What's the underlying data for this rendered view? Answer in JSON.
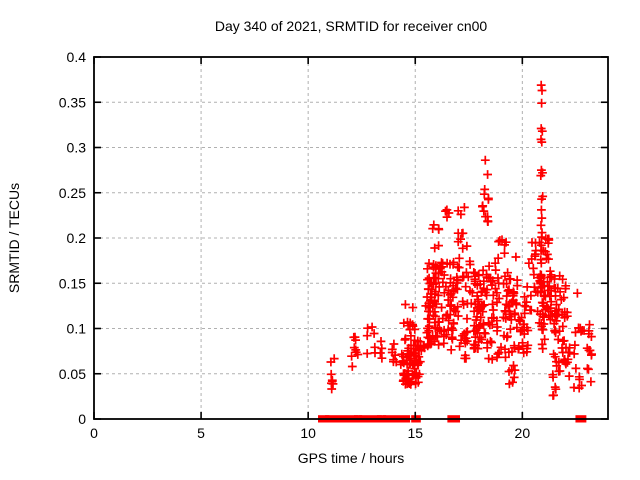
{
  "window": {
    "background": "#ffffff"
  },
  "chart_data": {
    "type": "scatter",
    "title": "Day 340 of 2021, SRMTID for receiver cn00",
    "xlabel": "GPS time / hours",
    "ylabel": "SRMTID / TECUs",
    "xlim": [
      0,
      24
    ],
    "ylim": [
      0,
      0.4
    ],
    "xticks": [
      0,
      5,
      10,
      15,
      20
    ],
    "xtick_labels": [
      "0",
      "5",
      "10",
      "15",
      "20"
    ],
    "yticks": [
      0,
      0.05,
      0.1,
      0.15,
      0.2,
      0.25,
      0.3,
      0.35,
      0.4
    ],
    "ytick_labels": [
      "0",
      "0.05",
      "0.1",
      "0.15",
      "0.2",
      "0.25",
      "0.3",
      "0.35",
      "0.4"
    ],
    "grid": true,
    "grid_color": "#b0b0b0",
    "border_color": "#000000",
    "marker": "plus",
    "marker_color": "#ff0000",
    "legend": "none",
    "baseline_value": 0,
    "baseline_segments": [
      [
        10.6,
        10.85
      ],
      [
        10.93,
        12.2
      ],
      [
        12.28,
        12.38
      ],
      [
        12.5,
        13.3
      ],
      [
        13.35,
        13.5
      ],
      [
        13.62,
        14.62
      ],
      [
        14.95,
        15.12
      ],
      [
        16.64,
        16.95
      ],
      [
        22.62,
        22.85
      ]
    ],
    "clusters": [
      [
        11.02,
        11.22,
        0.028,
        0.068,
        9
      ],
      [
        11.88,
        12.5,
        0.058,
        0.092,
        9
      ],
      [
        12.75,
        13.22,
        0.062,
        0.104,
        7
      ],
      [
        13.28,
        13.55,
        0.064,
        0.086,
        4
      ],
      [
        13.9,
        14.35,
        0.06,
        0.085,
        8
      ],
      [
        14.35,
        15.25,
        0.038,
        0.075,
        55
      ],
      [
        14.45,
        15.7,
        0.075,
        0.132,
        40
      ],
      [
        15.55,
        15.88,
        0.082,
        0.18,
        35
      ],
      [
        15.88,
        16.35,
        0.082,
        0.178,
        40
      ],
      [
        15.8,
        16.15,
        0.182,
        0.215,
        6
      ],
      [
        16.4,
        16.62,
        0.222,
        0.236,
        3
      ],
      [
        16.35,
        17.0,
        0.072,
        0.178,
        45
      ],
      [
        16.95,
        17.45,
        0.185,
        0.236,
        10
      ],
      [
        17.0,
        17.68,
        0.062,
        0.18,
        30
      ],
      [
        17.72,
        18.15,
        0.07,
        0.168,
        45
      ],
      [
        18.12,
        18.42,
        0.215,
        0.275,
        13
      ],
      [
        18.15,
        18.55,
        0.065,
        0.17,
        25
      ],
      [
        18.55,
        18.95,
        0.065,
        0.178,
        25
      ],
      [
        18.95,
        19.45,
        0.065,
        0.17,
        20
      ],
      [
        18.8,
        19.25,
        0.178,
        0.198,
        6
      ],
      [
        19.35,
        19.75,
        0.035,
        0.062,
        7
      ],
      [
        19.3,
        19.8,
        0.073,
        0.158,
        25
      ],
      [
        19.8,
        20.3,
        0.073,
        0.15,
        25
      ],
      [
        20.3,
        20.65,
        0.158,
        0.197,
        8
      ],
      [
        20.35,
        21.1,
        0.075,
        0.158,
        30
      ],
      [
        20.75,
        21.35,
        0.1,
        0.2,
        40
      ],
      [
        21.3,
        22.1,
        0.095,
        0.162,
        35
      ],
      [
        21.4,
        22.35,
        0.045,
        0.098,
        28
      ],
      [
        21.42,
        21.62,
        0.021,
        0.042,
        4
      ],
      [
        22.4,
        23.25,
        0.03,
        0.105,
        26
      ]
    ],
    "points": [
      [
        20.88,
        0.369
      ],
      [
        20.92,
        0.363
      ],
      [
        20.9,
        0.349
      ],
      [
        20.88,
        0.321
      ],
      [
        20.93,
        0.318
      ],
      [
        20.87,
        0.309
      ],
      [
        20.91,
        0.306
      ],
      [
        20.89,
        0.275
      ],
      [
        20.94,
        0.272
      ],
      [
        20.86,
        0.269
      ],
      [
        20.95,
        0.246
      ],
      [
        20.9,
        0.243
      ],
      [
        20.89,
        0.231
      ],
      [
        20.91,
        0.222
      ],
      [
        20.87,
        0.214
      ],
      [
        20.92,
        0.206
      ],
      [
        20.9,
        0.201
      ],
      [
        16.48,
        0.231
      ],
      [
        18.27,
        0.286
      ],
      [
        19.7,
        0.179
      ],
      [
        20.45,
        0.195
      ],
      [
        22.57,
        0.139
      ]
    ]
  }
}
